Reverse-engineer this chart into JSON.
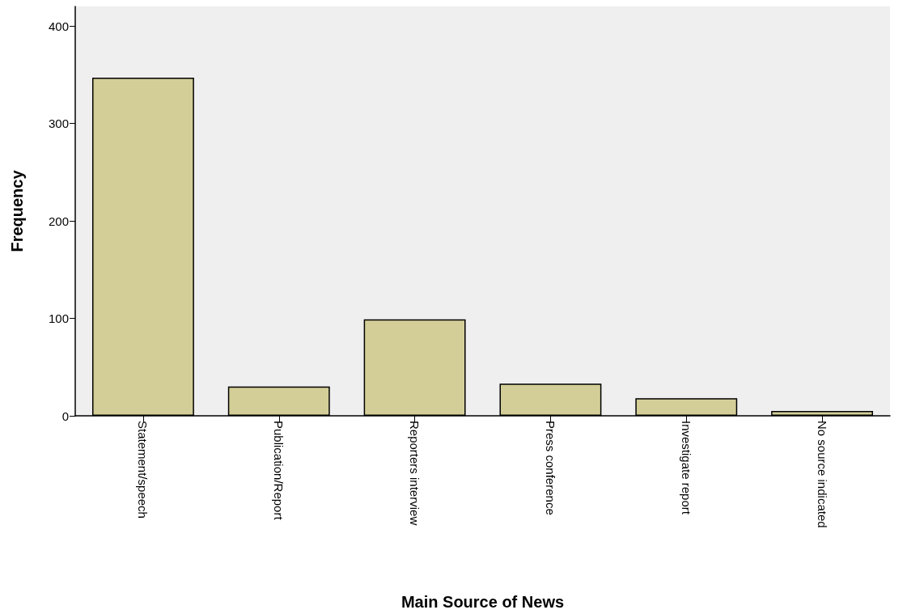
{
  "chart_data": {
    "type": "bar",
    "xlabel": "Main Source of News",
    "ylabel": "Frequency",
    "categories": [
      "Statement/speech",
      "Publication/Report",
      "Reporters interview",
      "Press conference",
      "Investigate report",
      "No source indicated"
    ],
    "values": [
      347,
      30,
      99,
      33,
      18,
      5
    ],
    "color": "#d3ce97",
    "ylim": [
      0,
      420
    ],
    "yticks": [
      0,
      100,
      200,
      300,
      400
    ],
    "grid": false
  }
}
